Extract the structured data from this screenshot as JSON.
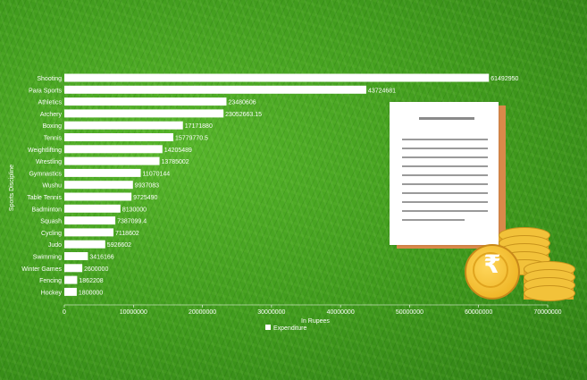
{
  "chart_data": {
    "type": "bar",
    "orientation": "horizontal",
    "title": "",
    "xlabel": "In Rupees",
    "ylabel": "Sports Discipline",
    "xlim": [
      0,
      70000000
    ],
    "grid": false,
    "legend_position": "bottom",
    "categories": [
      "Shooting",
      "Para Sports",
      "Athletics",
      "Archery",
      "Boxing",
      "Tennis",
      "Weightlifting",
      "Wrestling",
      "Gymnastics",
      "Wushu",
      "Table Tennis",
      "Badminton",
      "Squash",
      "Cycling",
      "Judo",
      "Swimming",
      "Winter Games",
      "Fencing",
      "Hockey"
    ],
    "series": [
      {
        "name": "Expenditure",
        "values": [
          61492950,
          43724681,
          23480606,
          23052663.15,
          17171880,
          15779770.5,
          14205489,
          13785002,
          11070144,
          9937083,
          9725490,
          8130000,
          7387099.4,
          7118602,
          5926602,
          3416166,
          2600000,
          1862208,
          1800000
        ],
        "value_labels": [
          "61492950",
          "43724681",
          "23480606",
          "23052663.15",
          "17171880",
          "15779770.5",
          "14205489",
          "13785002",
          "11070144",
          "9937083",
          "9725490",
          "8130000",
          "7387099.4",
          "7118602",
          "5926602",
          "3416166",
          "2600000",
          "1862208",
          "1800000"
        ]
      }
    ],
    "x_ticks": [
      0,
      10000000,
      20000000,
      30000000,
      40000000,
      50000000,
      60000000,
      70000000
    ],
    "x_tick_labels": [
      "0",
      "10000000",
      "20000000",
      "30000000",
      "40000000",
      "50000000",
      "60000000",
      "70000000"
    ],
    "colors": {
      "bar": "#ffffff",
      "background": "#3f9a1c"
    }
  },
  "decoration": {
    "illustration": "invoice-with-rupee-coins",
    "rupee_symbol": "₹"
  }
}
